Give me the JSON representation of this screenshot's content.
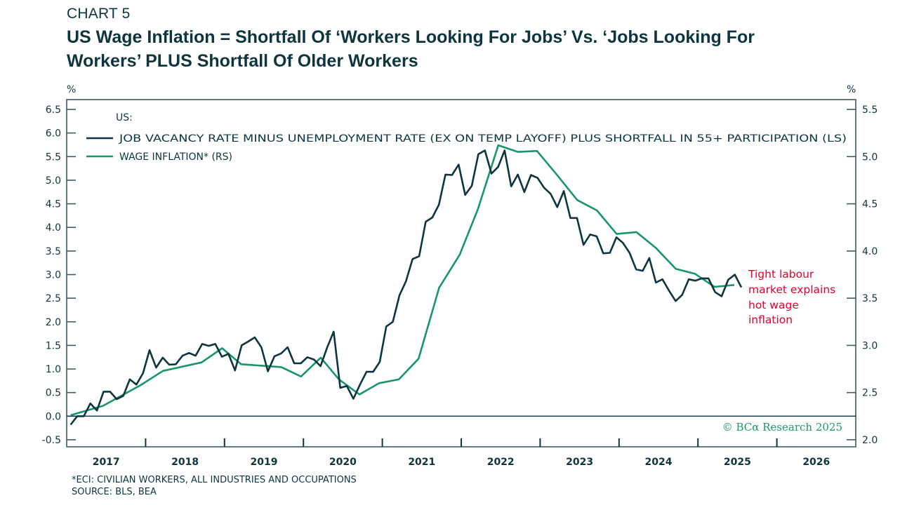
{
  "header": {
    "kicker": "CHART 5",
    "title_line1": "US Wage Inflation = Shortfall Of ‘Workers Looking For Jobs’ Vs. ‘Jobs Looking For",
    "title_line2": "Workers’ PLUS Shortfall Of Older Workers"
  },
  "footnote": {
    "line1": "*ECI: CIVILIAN WORKERS, ALL INDUSTRIES AND OCCUPATIONS",
    "line2": "SOURCE: BLS, BEA"
  },
  "colors": {
    "dark_series": "#0d3540",
    "green_series": "#17966a",
    "annotation": "#e4002b",
    "axis": "#3d5a63",
    "credit": "#1a9a6c"
  },
  "chart_data": {
    "type": "line",
    "title": "US Wage Inflation = Shortfall Of ‘Workers Looking For Jobs’ Vs. ‘Jobs Looking For Workers’ PLUS Shortfall Of Older Workers",
    "left_unit": "%",
    "right_unit": "%",
    "xlim": [
      2017.0,
      2027.0
    ],
    "ylim_left": [
      -0.5,
      6.5
    ],
    "ylim_right": [
      2.0,
      5.5
    ],
    "yticks_left": [
      "-0.5",
      "0.0",
      "0.5",
      "1.0",
      "1.5",
      "2.0",
      "2.5",
      "3.0",
      "3.5",
      "4.0",
      "4.5",
      "5.0",
      "5.5",
      "6.0",
      "6.5"
    ],
    "yticks_right": [
      "2.0",
      "2.5",
      "3.0",
      "3.5",
      "4.0",
      "4.5",
      "5.0",
      "5.5"
    ],
    "x_tick_labels": [
      "2017",
      "2018",
      "2019",
      "2020",
      "2021",
      "2022",
      "2023",
      "2024",
      "2025",
      "2026"
    ],
    "zero_line": true,
    "grid": false,
    "legend": {
      "heading": "US:",
      "position": "top-left",
      "entries": [
        "JOB VACANCY RATE MINUS UNEMPLOYMENT RATE (EX ON TEMP LAYOFF) PLUS SHORTFALL IN 55+ PARTICIPATION (LS)",
        "WAGE INFLATION* (RS)"
      ]
    },
    "annotation": [
      "Tight labour",
      "market explains",
      "hot wage",
      "inflation"
    ],
    "credit": "© BCα Research 2025",
    "series": [
      {
        "name": "JOB VACANCY RATE MINUS UNEMPLOYMENT RATE (EX ON TEMP LAYOFF) PLUS SHORTFALL IN 55+ PARTICIPATION (LS)",
        "axis": "left",
        "frequency": "monthly",
        "start": "2017-01",
        "values": [
          -0.18,
          0.0,
          0.0,
          0.27,
          0.12,
          0.52,
          0.52,
          0.36,
          0.43,
          0.78,
          0.67,
          0.91,
          1.4,
          1.03,
          1.24,
          1.09,
          1.1,
          1.28,
          1.34,
          1.28,
          1.53,
          1.49,
          1.53,
          1.26,
          1.32,
          0.97,
          1.5,
          1.58,
          1.67,
          1.46,
          0.95,
          1.27,
          1.33,
          1.46,
          1.12,
          1.12,
          1.25,
          1.2,
          1.06,
          1.45,
          1.79,
          0.6,
          0.64,
          0.37,
          0.67,
          0.94,
          0.94,
          1.15,
          1.9,
          2.0,
          2.56,
          2.86,
          3.33,
          3.39,
          4.12,
          4.21,
          4.48,
          5.12,
          5.11,
          5.33,
          4.69,
          4.88,
          5.55,
          5.63,
          5.14,
          5.28,
          5.63,
          4.87,
          5.12,
          4.75,
          5.11,
          5.05,
          4.84,
          4.71,
          4.43,
          4.77,
          4.2,
          4.2,
          3.63,
          3.85,
          3.81,
          3.45,
          3.46,
          3.79,
          3.67,
          3.46,
          3.11,
          3.08,
          3.35,
          2.83,
          2.9,
          2.66,
          2.44,
          2.57,
          2.9,
          2.87,
          2.92,
          2.92,
          2.63,
          2.54,
          2.89,
          3.0,
          2.73
        ]
      },
      {
        "name": "WAGE INFLATION* (RS)",
        "axis": "right",
        "frequency": "quarterly",
        "x": [
          2017.05,
          2017.46,
          2017.94,
          2018.22,
          2018.71,
          2018.97,
          2019.21,
          2019.72,
          2019.97,
          2020.22,
          2020.45,
          2020.71,
          2020.96,
          2021.21,
          2021.46,
          2021.72,
          2021.98,
          2022.21,
          2022.47,
          2022.72,
          2022.96,
          2023.22,
          2023.47,
          2023.72,
          2023.97,
          2024.22,
          2024.47,
          2024.72,
          2024.96,
          2025.21,
          2025.46
        ],
        "values": [
          2.26,
          2.36,
          2.58,
          2.73,
          2.82,
          2.97,
          2.8,
          2.77,
          2.67,
          2.87,
          2.64,
          2.48,
          2.6,
          2.64,
          2.86,
          3.61,
          3.96,
          4.44,
          5.12,
          5.05,
          5.06,
          4.8,
          4.54,
          4.43,
          4.18,
          4.2,
          4.03,
          3.81,
          3.76,
          3.62,
          3.64
        ]
      }
    ]
  }
}
